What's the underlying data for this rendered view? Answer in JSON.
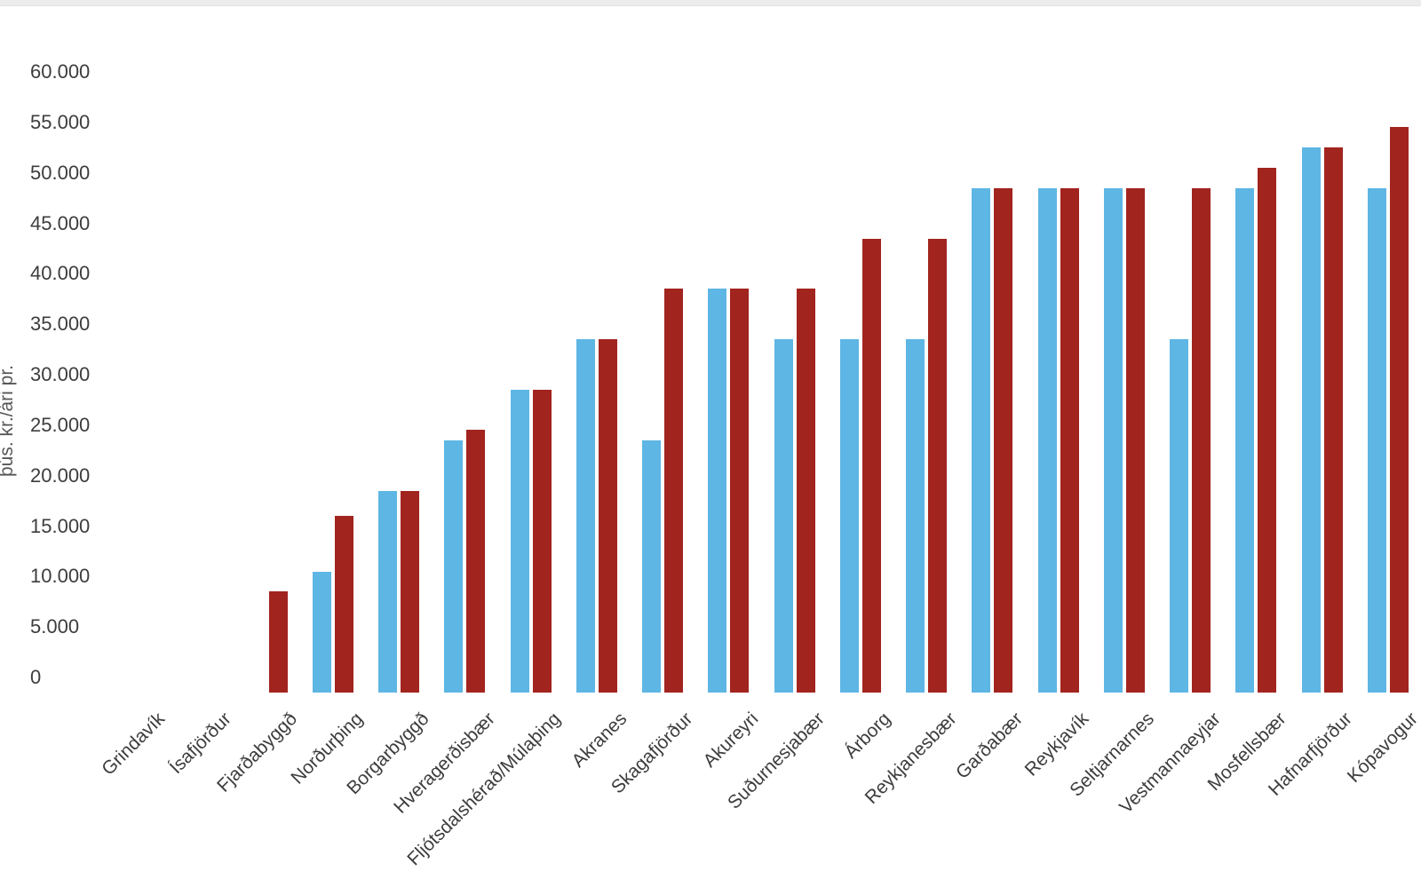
{
  "chart_data": {
    "type": "bar",
    "title": "",
    "xlabel": "",
    "ylabel": "þús. kr./ári pr.",
    "ylim": [
      0,
      60000
    ],
    "grid": false,
    "legend_position": "none",
    "ytick_values": [
      0,
      5000,
      10000,
      15000,
      20000,
      25000,
      30000,
      35000,
      40000,
      45000,
      50000,
      55000,
      60000
    ],
    "ytick_labels": [
      "0",
      "5.000",
      "10.000",
      "15.000",
      "20.000",
      "25.000",
      "30.000",
      "35.000",
      "40.000",
      "45.000",
      "50.000",
      "55.000",
      "60.000"
    ],
    "categories": [
      "Grindavík",
      "Ísafjörður",
      "Fjarðabyggð",
      "Norðurþing",
      "Borgarbyggð",
      "Hveragerðisbær",
      "Fljótsdalshérað/Múlaþing",
      "Akranes",
      "Skagafjörður",
      "Akureyri",
      "Suðurnesjabær",
      "Árborg",
      "Reykjanesbær",
      "Garðabær",
      "Reykjavík",
      "Seltjarnarnes",
      "Vestmannaeyjar",
      "Mosfellsbær",
      "Hafnarfjörður",
      "Kópavogur"
    ],
    "series": [
      {
        "name": "blue-series",
        "color": "#5eb6e4",
        "values": [
          null,
          null,
          null,
          12000,
          20000,
          25000,
          30000,
          35000,
          25000,
          40000,
          35000,
          35000,
          35000,
          50000,
          50000,
          50000,
          35000,
          50000,
          54000,
          50000
        ]
      },
      {
        "name": "red-series",
        "color": "#a2241f",
        "values": [
          null,
          null,
          10000,
          17500,
          20000,
          26000,
          30000,
          35000,
          40000,
          40000,
          40000,
          45000,
          45000,
          50000,
          50000,
          50000,
          50000,
          52000,
          54000,
          56000
        ]
      }
    ]
  }
}
